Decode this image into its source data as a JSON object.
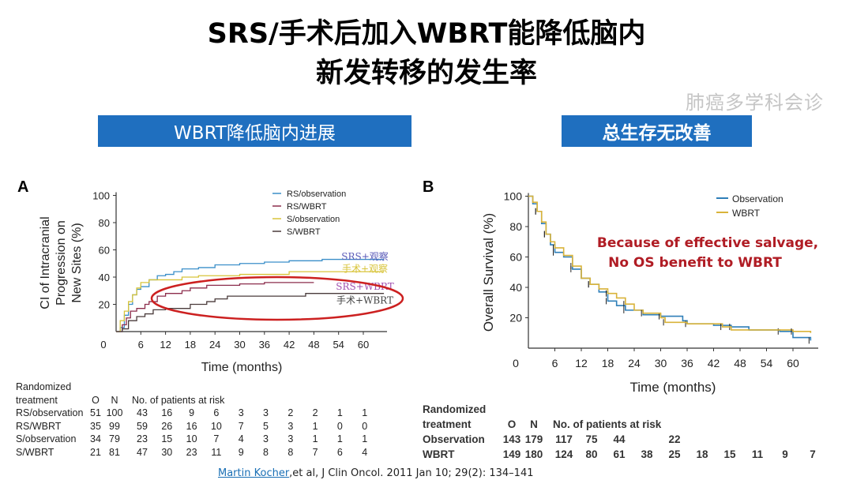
{
  "slide": {
    "title_line1": "SRS/手术后加入WBRT能降低脑内",
    "title_line2": "新发转移的发生率",
    "banner_left": "WBRT降低脑内进展",
    "banner_right": "总生存无改善",
    "banner_color": "#1f6fbf",
    "citation_link": "Martin Kocher",
    "citation_rest": ",et al, J Clin Oncol. 2011 Jan 10; 29(2): 134–141",
    "watermark": "肺癌多学科会诊"
  },
  "chart_data": [
    {
      "type": "line",
      "panel_label": "A",
      "ylabel_lines": [
        "CI of Intracranial",
        "Progression on",
        "New Sites (%)"
      ],
      "xlabel": "Time (months)",
      "xticks": [
        0,
        6,
        12,
        18,
        24,
        30,
        36,
        42,
        48,
        54,
        60
      ],
      "yticks": [
        20,
        40,
        60,
        80,
        100
      ],
      "xlim": [
        0,
        65
      ],
      "ylim": [
        0,
        100
      ],
      "legend_position": "top-right",
      "series": [
        {
          "name": "RS/observation",
          "color": "#3b8fc9",
          "points": [
            [
              0,
              0
            ],
            [
              1,
              3
            ],
            [
              2,
              12
            ],
            [
              3,
              20
            ],
            [
              4,
              27
            ],
            [
              5,
              31
            ],
            [
              6,
              33
            ],
            [
              8,
              38
            ],
            [
              10,
              41
            ],
            [
              12,
              42
            ],
            [
              14,
              44
            ],
            [
              16,
              46
            ],
            [
              20,
              47
            ],
            [
              24,
              49
            ],
            [
              30,
              50
            ],
            [
              36,
              51
            ],
            [
              42,
              52
            ],
            [
              50,
              53
            ],
            [
              65,
              53
            ]
          ]
        },
        {
          "name": "RS/WBRT",
          "color": "#8c2d4c",
          "points": [
            [
              0,
              0
            ],
            [
              1.5,
              5
            ],
            [
              2.5,
              10
            ],
            [
              3.5,
              15
            ],
            [
              5,
              17
            ],
            [
              7,
              20
            ],
            [
              8,
              22
            ],
            [
              10,
              26
            ],
            [
              12,
              28
            ],
            [
              16,
              30
            ],
            [
              18,
              32
            ],
            [
              22,
              34
            ],
            [
              30,
              35
            ],
            [
              36,
              36
            ],
            [
              48,
              36
            ]
          ]
        },
        {
          "name": "S/observation",
          "color": "#d8c43a",
          "points": [
            [
              0,
              0
            ],
            [
              1,
              8
            ],
            [
              2,
              15
            ],
            [
              3,
              22
            ],
            [
              4,
              27
            ],
            [
              5,
              32
            ],
            [
              6,
              36
            ],
            [
              8,
              38
            ],
            [
              12,
              38
            ],
            [
              16,
              40
            ],
            [
              20,
              41
            ],
            [
              30,
              42
            ],
            [
              42,
              44
            ],
            [
              65,
              44
            ]
          ]
        },
        {
          "name": "S/WBRT",
          "color": "#4a3b3b",
          "points": [
            [
              0,
              0
            ],
            [
              1.5,
              2
            ],
            [
              3,
              8
            ],
            [
              5,
              11
            ],
            [
              7,
              13
            ],
            [
              9,
              16
            ],
            [
              12,
              17
            ],
            [
              18,
              20
            ],
            [
              22,
              22
            ],
            [
              24,
              24
            ],
            [
              27,
              26
            ],
            [
              36,
              26
            ],
            [
              46,
              28
            ],
            [
              65,
              28
            ]
          ]
        }
      ],
      "annotations": [
        {
          "text": "SRS+观察",
          "color": "#5a5ab8",
          "x": 60,
          "y": 55
        },
        {
          "text": "手术+观察",
          "color": "#d8c43a",
          "x": 60,
          "y": 46
        },
        {
          "text": "SRS+WBRT",
          "color": "#a050b0",
          "x": 60,
          "y": 33
        },
        {
          "text": "手术+WBRT",
          "color": "#444444",
          "x": 60,
          "y": 23
        }
      ],
      "risk_table": {
        "header1": "Randomized",
        "header2": "treatment",
        "col_o": "O",
        "col_n": "N",
        "col_risk": "No. of patients at risk",
        "rows": [
          {
            "name": "RS/observation",
            "o": "51",
            "n": "100",
            "risk": [
              "43",
              "16",
              "9",
              "6",
              "3",
              "3",
              "2",
              "2",
              "1",
              "1"
            ]
          },
          {
            "name": "RS/WBRT",
            "o": "35",
            "n": "99",
            "risk": [
              "59",
              "26",
              "16",
              "10",
              "7",
              "5",
              "3",
              "1",
              "0",
              "0"
            ]
          },
          {
            "name": "S/observation",
            "o": "34",
            "n": "79",
            "risk": [
              "23",
              "15",
              "10",
              "7",
              "4",
              "3",
              "3",
              "1",
              "1",
              "1"
            ]
          },
          {
            "name": "S/WBRT",
            "o": "21",
            "n": "81",
            "risk": [
              "47",
              "30",
              "23",
              "11",
              "9",
              "8",
              "8",
              "7",
              "6",
              "4"
            ]
          }
        ]
      }
    },
    {
      "type": "line",
      "panel_label": "B",
      "ylabel": "Overall Survival (%)",
      "xlabel": "Time (months)",
      "xticks": [
        0,
        6,
        12,
        18,
        24,
        30,
        36,
        42,
        48,
        54,
        60
      ],
      "yticks": [
        20,
        40,
        60,
        80,
        100
      ],
      "xlim": [
        0,
        65
      ],
      "ylim": [
        0,
        100
      ],
      "legend_position": "top-right",
      "series": [
        {
          "name": "Observation",
          "color": "#2f7fb8",
          "points": [
            [
              0,
              100
            ],
            [
              1,
              95
            ],
            [
              2,
              90
            ],
            [
              3,
              82
            ],
            [
              4,
              75
            ],
            [
              5,
              68
            ],
            [
              6,
              63
            ],
            [
              8,
              60
            ],
            [
              10,
              52
            ],
            [
              12,
              46
            ],
            [
              14,
              42
            ],
            [
              16,
              37
            ],
            [
              18,
              31
            ],
            [
              20,
              28
            ],
            [
              22,
              25
            ],
            [
              26,
              22
            ],
            [
              30,
              21
            ],
            [
              35,
              18
            ],
            [
              36,
              16
            ],
            [
              42,
              15
            ],
            [
              46,
              14
            ],
            [
              50,
              12
            ],
            [
              57,
              11
            ],
            [
              60,
              7
            ],
            [
              64,
              5
            ]
          ]
        },
        {
          "name": "WBRT",
          "color": "#d9b33a",
          "points": [
            [
              0,
              100
            ],
            [
              1,
              96
            ],
            [
              2,
              90
            ],
            [
              3,
              83
            ],
            [
              4,
              75
            ],
            [
              5,
              70
            ],
            [
              6,
              66
            ],
            [
              8,
              61
            ],
            [
              10,
              54
            ],
            [
              12,
              46
            ],
            [
              14,
              42
            ],
            [
              16,
              39
            ],
            [
              18,
              36
            ],
            [
              20,
              33
            ],
            [
              22,
              29
            ],
            [
              24,
              25
            ],
            [
              26,
              23
            ],
            [
              30,
              20
            ],
            [
              31,
              17
            ],
            [
              36,
              16
            ],
            [
              44,
              14
            ],
            [
              46,
              12
            ],
            [
              60,
              11
            ],
            [
              64,
              10
            ]
          ]
        }
      ],
      "annotation_line1": "Because of effective salvage,",
      "annotation_line2": "No OS benefit to WBRT",
      "annotation_color": "#b01c24",
      "risk_table": {
        "header1": "Randomized",
        "header2": "treatment",
        "col_o": "O",
        "col_n": "N",
        "col_risk": "No. of patients at risk",
        "rows": [
          {
            "name": "Observation",
            "o": "143",
            "n": "179",
            "risk": [
              "117",
              "75",
              "44",
              "",
              "22",
              "",
              "",
              "",
              "",
              ""
            ]
          },
          {
            "name": "WBRT",
            "o": "149",
            "n": "180",
            "risk": [
              "124",
              "80",
              "61",
              "38",
              "25",
              "18",
              "15",
              "11",
              "9",
              "7"
            ]
          }
        ]
      }
    }
  ]
}
